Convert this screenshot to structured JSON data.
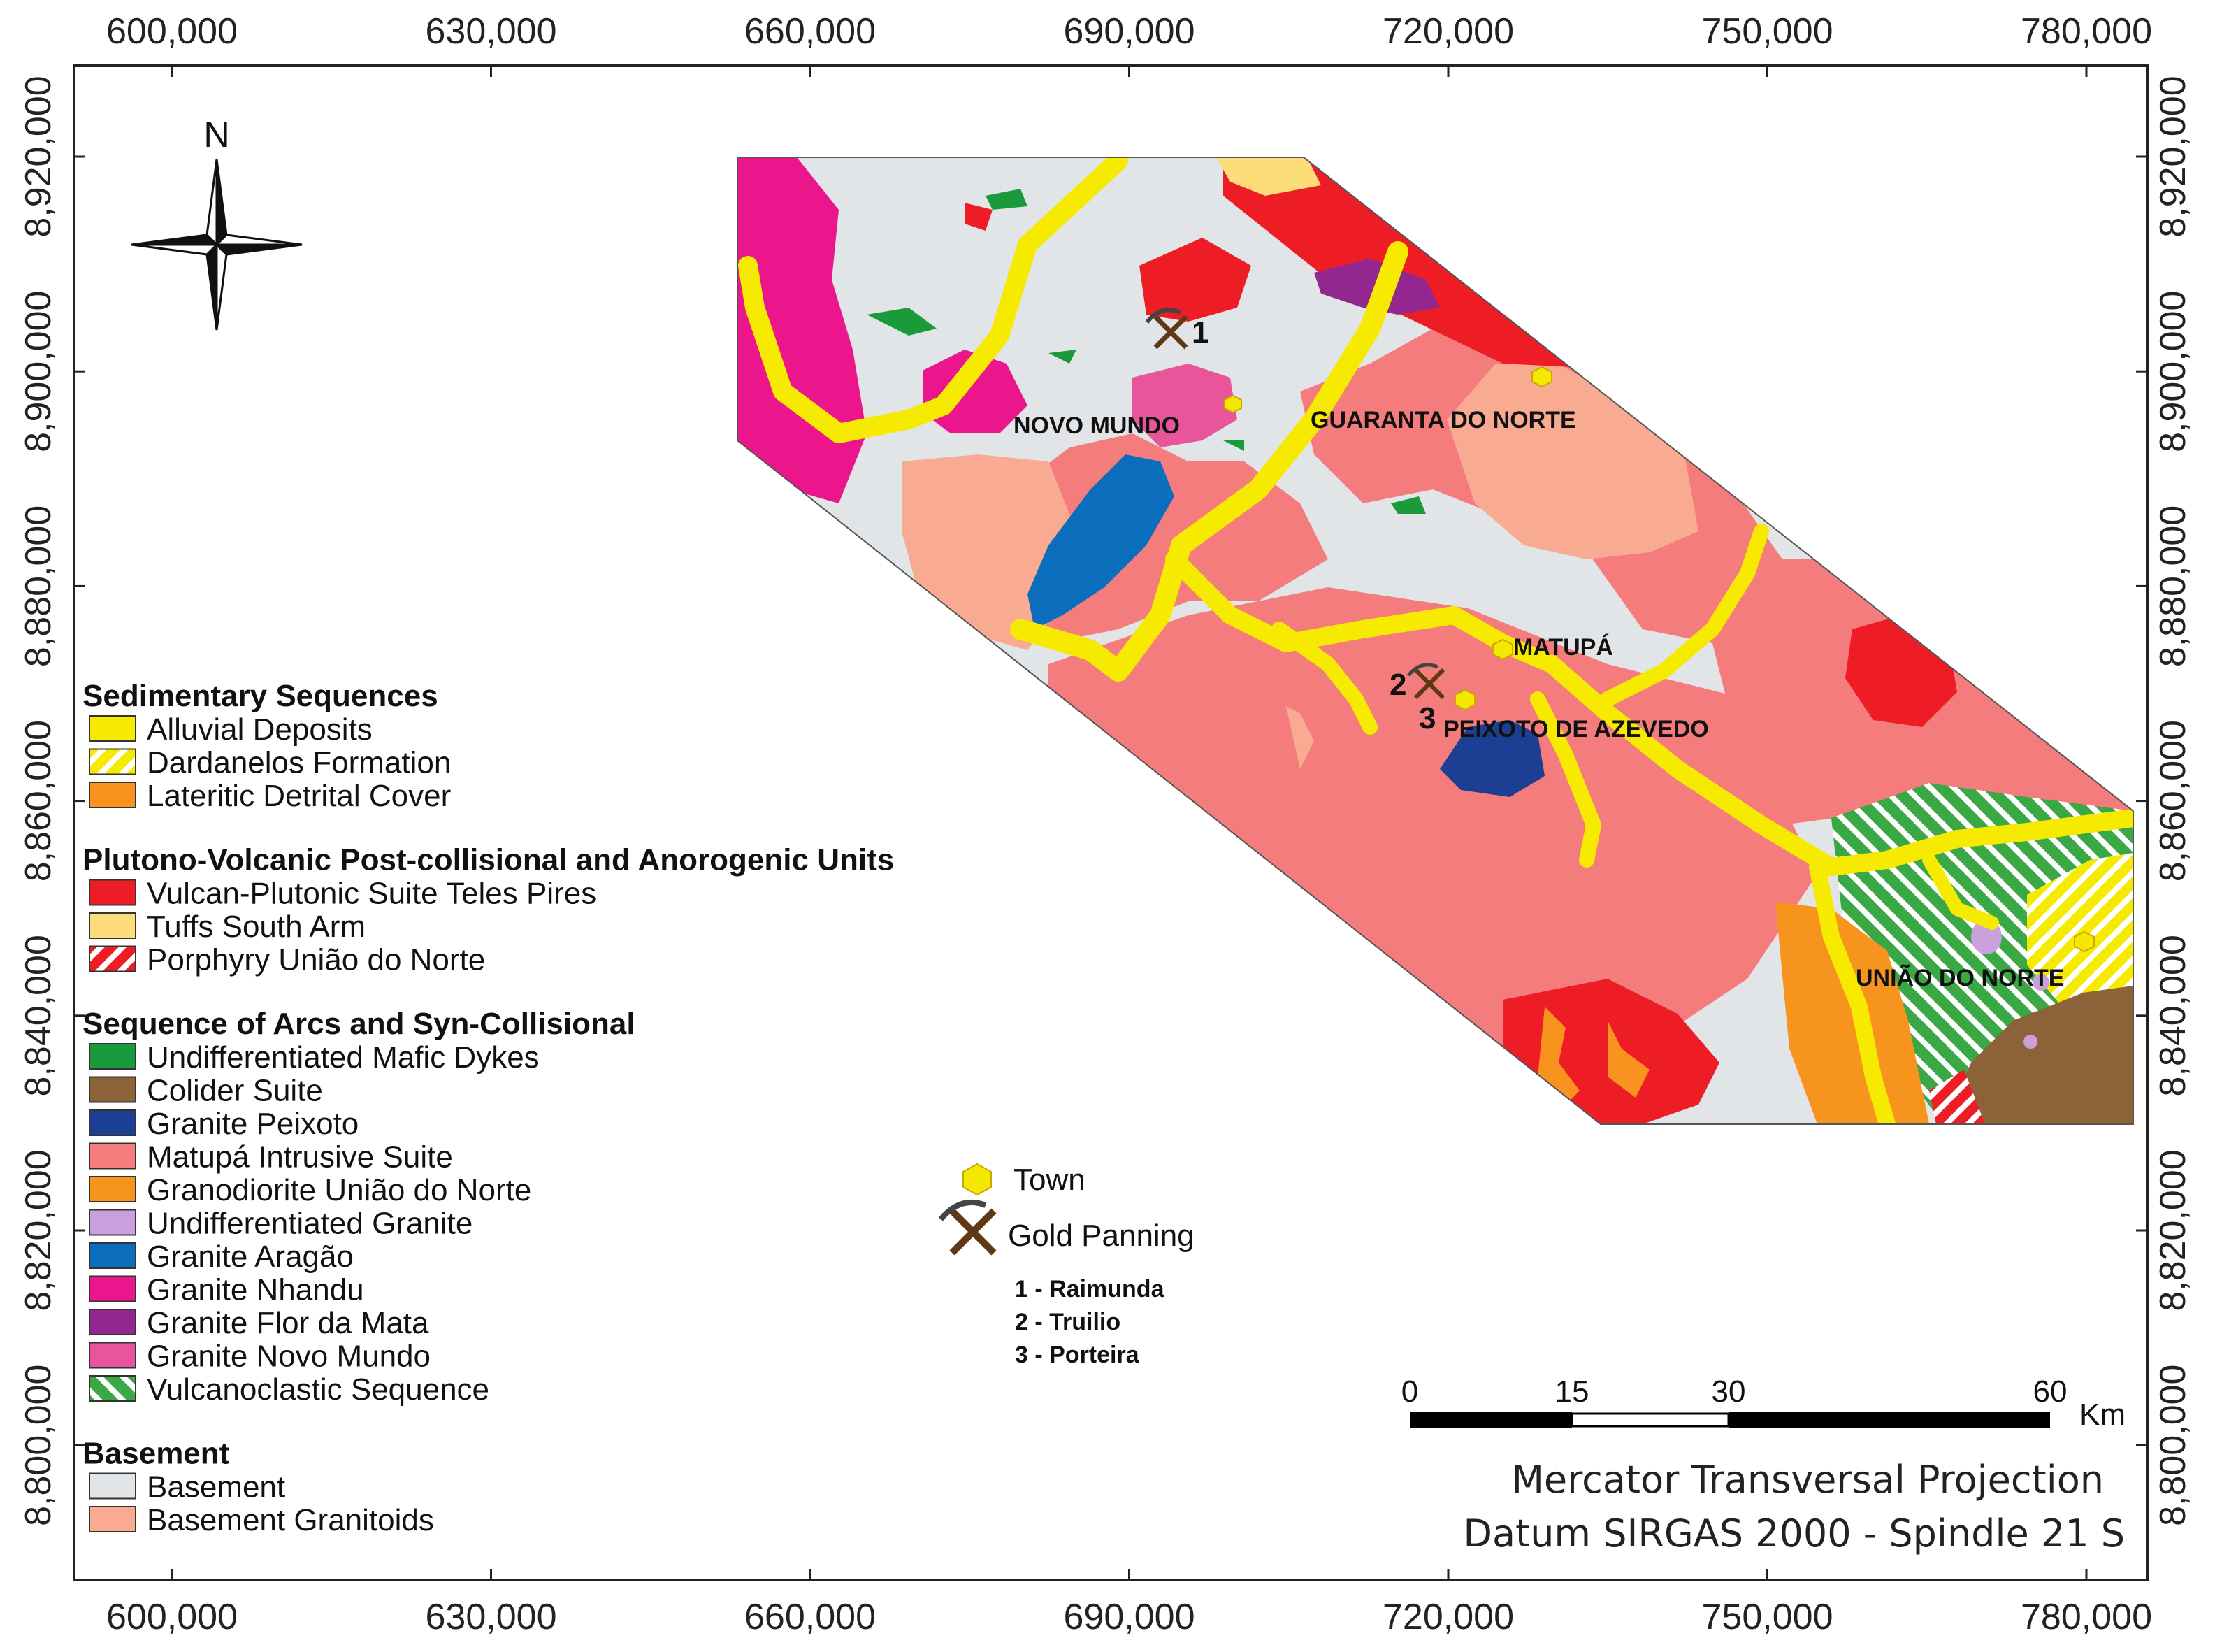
{
  "x_ticks": [
    "600,000",
    "630,000",
    "660,000",
    "690,000",
    "720,000",
    "750,000",
    "780,000"
  ],
  "y_ticks": [
    "8,920,000",
    "8,900,000",
    "8,880,000",
    "8,860,000",
    "8,840,000",
    "8,820,000",
    "8,800,000"
  ],
  "north_label": "N",
  "towns": [
    {
      "name": "NOVO MUNDO"
    },
    {
      "name": "GUARANTA DO NORTE"
    },
    {
      "name": "MATUPÁ"
    },
    {
      "name": "PEIXOTO DE AZEVEDO"
    },
    {
      "name": "UNIÃO DO NORTE"
    }
  ],
  "gold_markers": [
    "1",
    "2",
    "3"
  ],
  "legend": {
    "groups": [
      {
        "title": "Sedimentary Sequences",
        "items": [
          {
            "label": "Alluvial Deposits",
            "color": "#f5ea00",
            "pattern": "solid"
          },
          {
            "label": "Dardanelos Formation",
            "color": "#f5ea00",
            "pattern": "hatch"
          },
          {
            "label": "Lateritic Detrital Cover",
            "color": "#f7931e",
            "pattern": "solid"
          }
        ]
      },
      {
        "title": "Plutono-Volcanic Post-collisional and Anorogenic Units",
        "items": [
          {
            "label": "Vulcan-Plutonic Suite Teles Pires",
            "color": "#ee1c25",
            "pattern": "solid"
          },
          {
            "label": "Tuffs South Arm",
            "color": "#fddc7a",
            "pattern": "solid"
          },
          {
            "label": "Porphyry União do Norte",
            "color": "#ee1c25",
            "pattern": "hatch"
          }
        ]
      },
      {
        "title": "Sequence of Arcs and Syn-Collisional",
        "items": [
          {
            "label": "Undifferentiated Mafic Dykes",
            "color": "#1a9a3a",
            "pattern": "solid"
          },
          {
            "label": "Colider Suite",
            "color": "#8c6239",
            "pattern": "solid"
          },
          {
            "label": "Granite Peixoto",
            "color": "#1c3f94",
            "pattern": "solid"
          },
          {
            "label": "Matupá Intrusive Suite",
            "color": "#f47c7c",
            "pattern": "solid"
          },
          {
            "label": "Granodiorite União do Norte",
            "color": "#f7941d",
            "pattern": "solid"
          },
          {
            "label": "Undifferentiated Granite",
            "color": "#c9a0dc",
            "pattern": "solid"
          },
          {
            "label": "Granite Aragão",
            "color": "#0a6ebd",
            "pattern": "solid"
          },
          {
            "label": "Granite Nhandu",
            "color": "#ec168c",
            "pattern": "solid"
          },
          {
            "label": "Granite Flor da Mata",
            "color": "#92278f",
            "pattern": "solid"
          },
          {
            "label": "Granite Novo Mundo",
            "color": "#e8559a",
            "pattern": "solid"
          },
          {
            "label": "Vulcanoclastic Sequence",
            "color": "#39a845",
            "pattern": "hatch"
          }
        ]
      },
      {
        "title": "Basement",
        "items": [
          {
            "label": "Basement",
            "color": "#e1e5e8",
            "pattern": "solid"
          },
          {
            "label": "Basement Granitoids",
            "color": "#f9ab91",
            "pattern": "solid"
          }
        ]
      }
    ]
  },
  "symbols": {
    "town": "Town",
    "gold": "Gold Panning"
  },
  "gold_sites": [
    "1 - Raimunda",
    "2 - Truilio",
    "3 - Porteira"
  ],
  "scale": {
    "ticks": [
      "0",
      "15",
      "30",
      "60"
    ],
    "unit": "Km"
  },
  "projection": [
    "Mercator Transversal Projection",
    "Datum SIRGAS 2000 - Spindle 21 S"
  ]
}
